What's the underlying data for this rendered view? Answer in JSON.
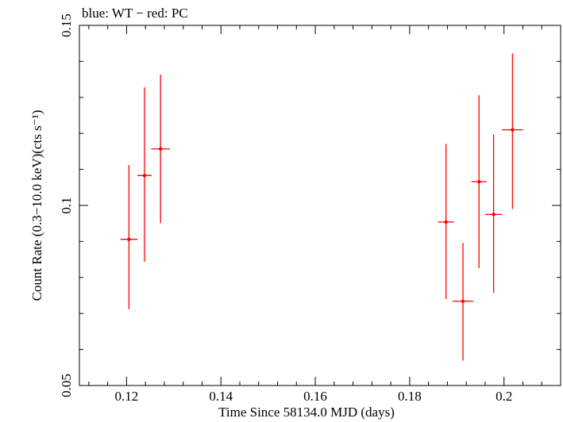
{
  "chart_data": {
    "type": "scatter",
    "title": "blue: WT − red: PC",
    "xlabel": "Time Since 58134.0 MJD (days)",
    "ylabel": "Count Rate (0.3−10.0 keV)(cts s⁻¹)",
    "xlim": [
      0.11,
      0.212
    ],
    "ylim": [
      0.05,
      0.15
    ],
    "x_ticks": [
      {
        "value": 0.12,
        "label": "0.12"
      },
      {
        "value": 0.14,
        "label": "0.14"
      },
      {
        "value": 0.16,
        "label": "0.16"
      },
      {
        "value": 0.18,
        "label": "0.18"
      },
      {
        "value": 0.2,
        "label": "0.2"
      }
    ],
    "y_ticks": [
      {
        "value": 0.05,
        "label": "0.05"
      },
      {
        "value": 0.1,
        "label": "0.1"
      },
      {
        "value": 0.15,
        "label": "0.15"
      }
    ],
    "grid": false,
    "series": [
      {
        "name": "PC",
        "color": "#ff0000",
        "points": [
          {
            "x": 0.1205,
            "y": 0.0906,
            "xerr": 0.0018,
            "ylo": 0.0712,
            "yhi": 0.1112
          },
          {
            "x": 0.1238,
            "y": 0.1083,
            "xerr": 0.0015,
            "ylo": 0.0844,
            "yhi": 0.1328
          },
          {
            "x": 0.1272,
            "y": 0.1157,
            "xerr": 0.002,
            "ylo": 0.0951,
            "yhi": 0.1363
          },
          {
            "x": 0.1877,
            "y": 0.0954,
            "xerr": 0.0017,
            "ylo": 0.074,
            "yhi": 0.1171
          },
          {
            "x": 0.1913,
            "y": 0.0734,
            "xerr": 0.0022,
            "ylo": 0.0569,
            "yhi": 0.0896
          },
          {
            "x": 0.1947,
            "y": 0.1066,
            "xerr": 0.0016,
            "ylo": 0.0826,
            "yhi": 0.1306
          },
          {
            "x": 0.1978,
            "y": 0.0975,
            "xerr": 0.0018,
            "ylo": 0.0757,
            "yhi": 0.1197
          },
          {
            "x": 0.2018,
            "y": 0.121,
            "xerr": 0.0022,
            "ylo": 0.099,
            "yhi": 0.1422
          }
        ]
      }
    ]
  }
}
